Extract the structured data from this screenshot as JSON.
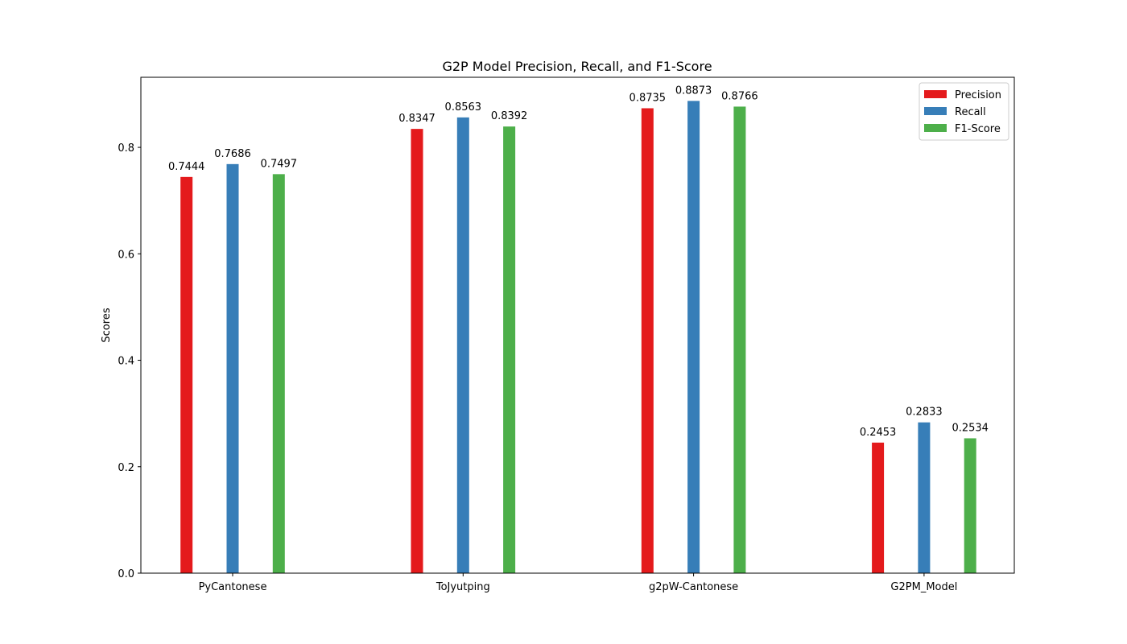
{
  "chart_data": {
    "type": "bar",
    "title": "G2P Model Precision, Recall, and F1-Score",
    "xlabel": "",
    "ylabel": "Scores",
    "categories": [
      "PyCantonese",
      "ToJyutping",
      "g2pW-Cantonese",
      "G2PM_Model"
    ],
    "series": [
      {
        "name": "Precision",
        "color": "#e41a1c",
        "values": [
          0.7444,
          0.8347,
          0.8735,
          0.2453
        ],
        "labels": [
          "0.7444",
          "0.8347",
          "0.8735",
          "0.2453"
        ]
      },
      {
        "name": "Recall",
        "color": "#377eb8",
        "values": [
          0.7686,
          0.8563,
          0.8873,
          0.2833
        ],
        "labels": [
          "0.7686",
          "0.8563",
          "0.8873",
          "0.2833"
        ]
      },
      {
        "name": "F1-Score",
        "color": "#4daf4a",
        "values": [
          0.7497,
          0.8392,
          0.8766,
          0.2534
        ],
        "labels": [
          "0.7497",
          "0.8392",
          "0.8766",
          "0.2534"
        ]
      }
    ],
    "yticks": [
      0.0,
      0.2,
      0.4,
      0.6,
      0.8
    ],
    "ytick_labels": [
      "0.0",
      "0.2",
      "0.4",
      "0.6",
      "0.8"
    ],
    "ylim": [
      0,
      0.9317
    ],
    "grid": false,
    "legend_position": "top-right"
  }
}
